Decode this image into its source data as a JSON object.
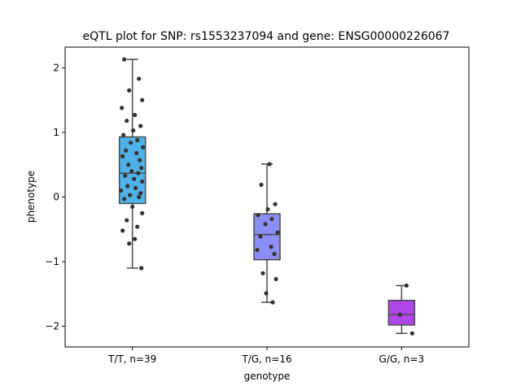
{
  "chart_data": {
    "type": "box",
    "title": "eQTL plot for SNP: rs1553237094 and gene: ENSG00000226067",
    "xlabel": "genotype",
    "ylabel": "phenotype",
    "ylim": [
      -2.32,
      2.32
    ],
    "yticks": [
      -2,
      -1,
      0,
      1,
      2
    ],
    "ytick_labels": [
      "−2",
      "−1",
      "0",
      "1",
      "2"
    ],
    "grid": false,
    "categories": [
      "T/T, n=39",
      "T/G, n=16",
      "G/G, n=3"
    ],
    "boxes": [
      {
        "category": "T/T, n=39",
        "color": "#4fb3ea",
        "whisker_low": -1.1,
        "q1": -0.1,
        "median": 0.37,
        "q3": 0.93,
        "whisker_high": 2.13,
        "points": [
          2.13,
          1.83,
          1.65,
          1.5,
          1.38,
          1.27,
          1.18,
          1.1,
          1.03,
          0.96,
          0.88,
          0.84,
          0.77,
          0.72,
          0.68,
          0.63,
          0.57,
          0.5,
          0.45,
          0.4,
          0.37,
          0.33,
          0.28,
          0.24,
          0.17,
          0.14,
          0.1,
          0.06,
          0.03,
          0.0,
          -0.03,
          -0.15,
          -0.25,
          -0.36,
          -0.46,
          -0.52,
          -0.65,
          -0.72,
          -1.1
        ]
      },
      {
        "category": "T/G, n=16",
        "color": "#8b8ef5",
        "whisker_low": -1.63,
        "q1": -0.97,
        "median": -0.58,
        "q3": -0.26,
        "whisker_high": 0.51,
        "points": [
          0.51,
          0.19,
          -0.11,
          -0.19,
          -0.28,
          -0.34,
          -0.42,
          -0.55,
          -0.61,
          -0.77,
          -0.82,
          -0.88,
          -1.18,
          -1.27,
          -1.49,
          -1.63
        ]
      },
      {
        "category": "G/G, n=3",
        "color": "#b046e8",
        "whisker_low": -2.11,
        "q1": -1.98,
        "median": -1.82,
        "q3": -1.6,
        "whisker_high": -1.37,
        "points": [
          -1.37,
          -1.82,
          -2.11
        ]
      }
    ]
  }
}
